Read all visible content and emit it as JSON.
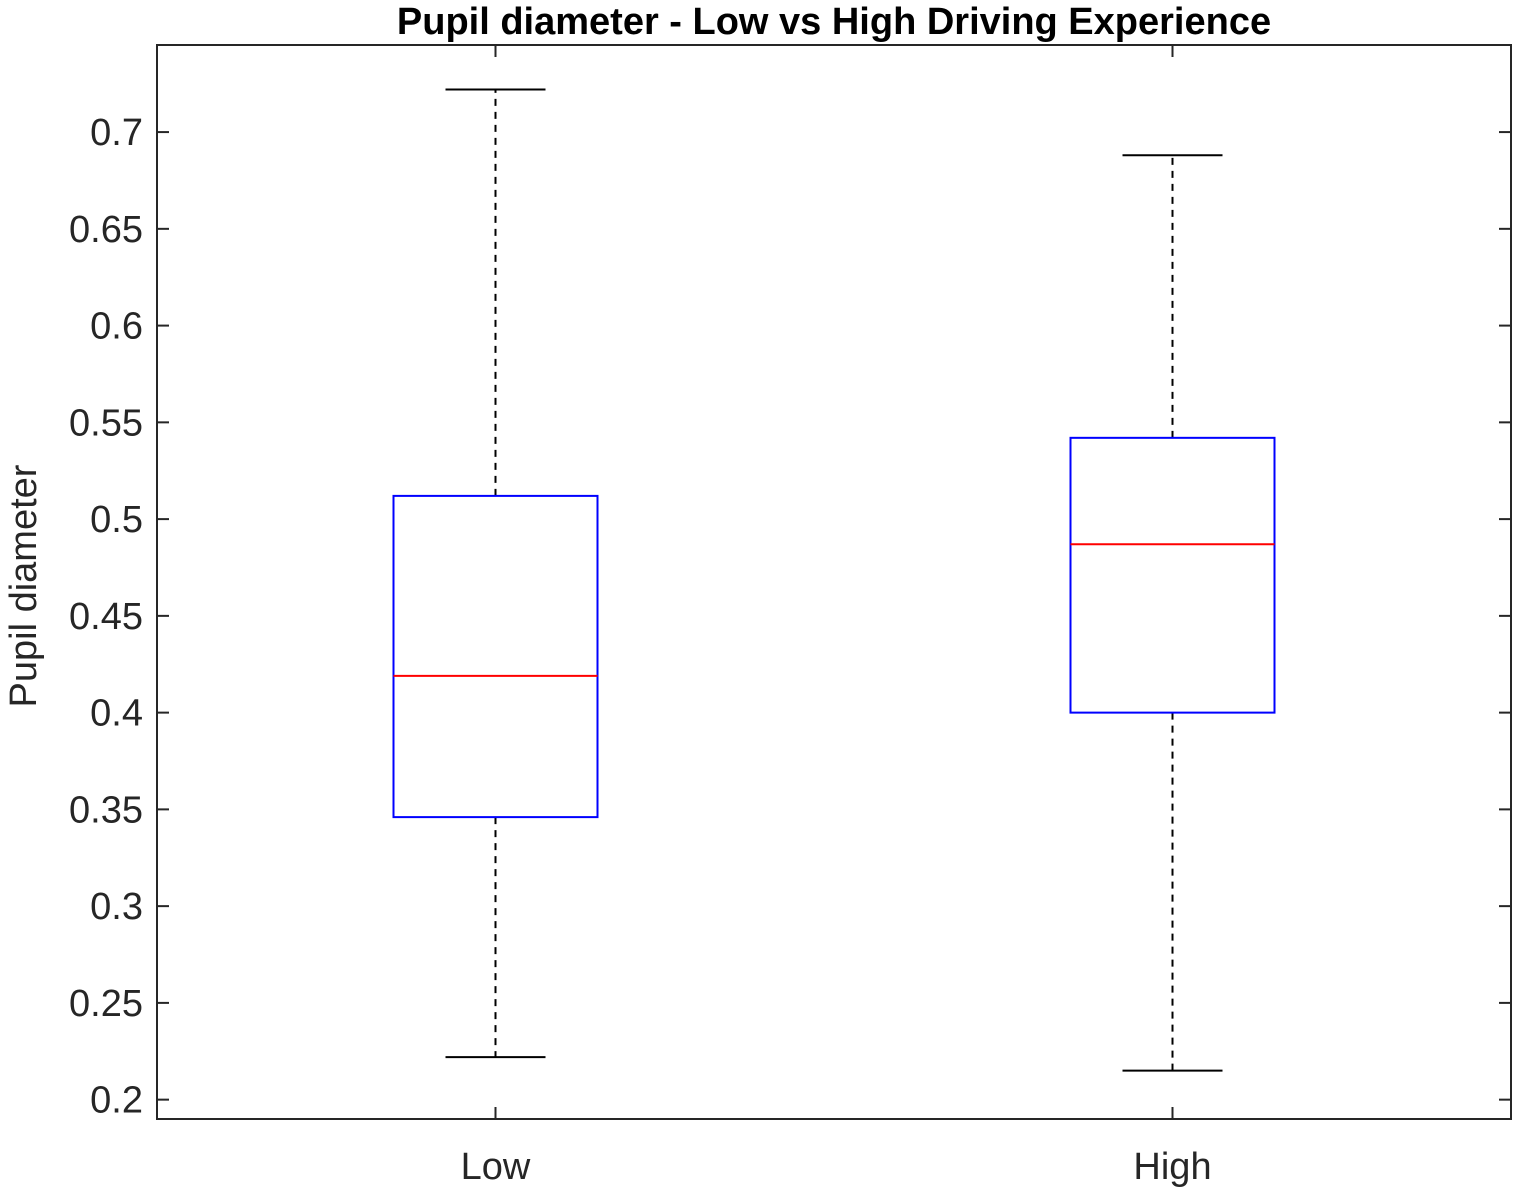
{
  "chart_data": {
    "type": "boxplot",
    "title": "Pupil diameter - Low vs High Driving Experience",
    "xlabel": "",
    "ylabel": "Pupil diameter",
    "categories": [
      "Low",
      "High"
    ],
    "ylim": [
      0.19,
      0.745
    ],
    "yticks": [
      0.2,
      0.25,
      0.3,
      0.35,
      0.4,
      0.45,
      0.5,
      0.55,
      0.6,
      0.65,
      0.7
    ],
    "ytick_labels": [
      "0.2",
      "0.25",
      "0.3",
      "0.35",
      "0.4",
      "0.45",
      "0.5",
      "0.55",
      "0.6",
      "0.65",
      "0.7"
    ],
    "boxes": [
      {
        "category": "Low",
        "whisker_low": 0.222,
        "q1": 0.346,
        "median": 0.419,
        "q3": 0.512,
        "whisker_high": 0.722
      },
      {
        "category": "High",
        "whisker_low": 0.215,
        "q1": 0.4,
        "median": 0.487,
        "q3": 0.542,
        "whisker_high": 0.688
      }
    ],
    "grid": false,
    "colors": {
      "box": "#0000ff",
      "median": "#ff0000",
      "whisker": "#000000",
      "axis": "#262626"
    }
  }
}
